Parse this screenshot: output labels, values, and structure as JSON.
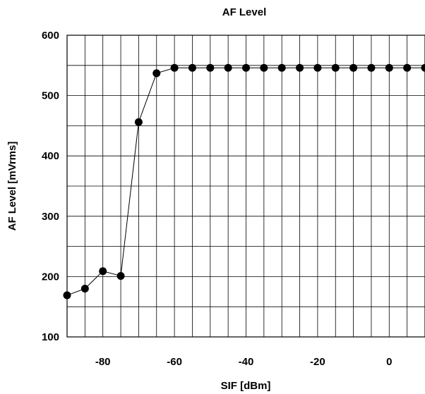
{
  "chart_data": {
    "type": "line",
    "title": "AF Level",
    "xlabel": "SIF [dBm]",
    "ylabel": "AF Level [mVrms]",
    "xlim": [
      -90,
      10
    ],
    "ylim": [
      100,
      600
    ],
    "x_ticks": [
      -80,
      -60,
      -40,
      -20,
      0
    ],
    "x_tick_labels": [
      "-80",
      "-60",
      "-40",
      "-20",
      "0"
    ],
    "x_grid_step": 5,
    "y_ticks": [
      100,
      200,
      300,
      400,
      500,
      600
    ],
    "y_tick_labels": [
      "100",
      "200",
      "300",
      "400",
      "500",
      "600"
    ],
    "y_grid_step": 50,
    "grid": true,
    "legend": "none",
    "series": [
      {
        "color": "#000000",
        "marker": "circle",
        "x": [
          -90,
          -85,
          -80,
          -75,
          -70,
          -65,
          -60,
          -55,
          -50,
          -45,
          -40,
          -35,
          -30,
          -25,
          -20,
          -15,
          -10,
          -5,
          0,
          5,
          10
        ],
        "y": [
          169,
          180,
          209,
          201,
          456,
          537,
          546,
          546,
          546,
          546,
          546,
          546,
          546,
          546,
          546,
          546,
          546,
          546,
          546,
          546,
          546
        ]
      }
    ]
  }
}
